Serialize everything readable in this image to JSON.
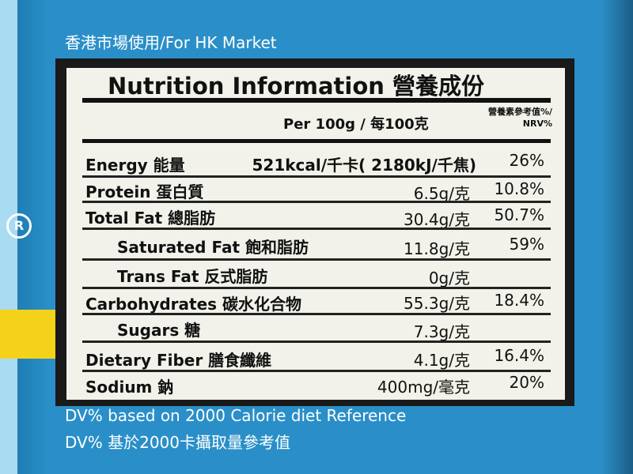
{
  "market_label": "香港市場使用/For HK Market",
  "title": "Nutrition  Information  營養成份",
  "header": {
    "per_label": "Per 100g / 每100克",
    "nrv_line1": "營養素參考值%/",
    "nrv_line2": "NRV%"
  },
  "rows": [
    {
      "name": "Energy 能量",
      "amount": "521kcal/千卡( 2180kJ/千焦)",
      "nrv": "26%"
    },
    {
      "name": "Protein 蛋白質",
      "amount": "6.5g/克",
      "nrv": "10.8%"
    },
    {
      "name": "Total Fat 總脂肪",
      "amount": "30.4g/克",
      "nrv": "50.7%"
    },
    {
      "name": "Saturated Fat 飽和脂肪",
      "amount": "11.8g/克",
      "nrv": "59%"
    },
    {
      "name": "Trans Fat 反式脂肪",
      "amount": "0g/克",
      "nrv": ""
    },
    {
      "name": "Carbohydrates 碳水化合物",
      "amount": "55.3g/克",
      "nrv": "18.4%"
    },
    {
      "name": "Sugars 糖",
      "amount": "7.3g/克",
      "nrv": ""
    },
    {
      "name": "Dietary Fiber 膳食纖維",
      "amount": "4.1g/克",
      "nrv": "16.4%"
    },
    {
      "name": "Sodium 鈉",
      "amount": "400mg/毫克",
      "nrv": "20%"
    }
  ],
  "footer": {
    "line1": "DV% based on 2000 Calorie diet Reference",
    "line2": "DV% 基於2000卡攝取量參考值"
  },
  "colors": {
    "box_blue": "#2a8fc8",
    "panel_black": "#1a1a1a",
    "card_white": "#f2f2ea",
    "accent_yellow": "#f5d21a"
  },
  "icons": [
    "registered-mark-icon"
  ]
}
